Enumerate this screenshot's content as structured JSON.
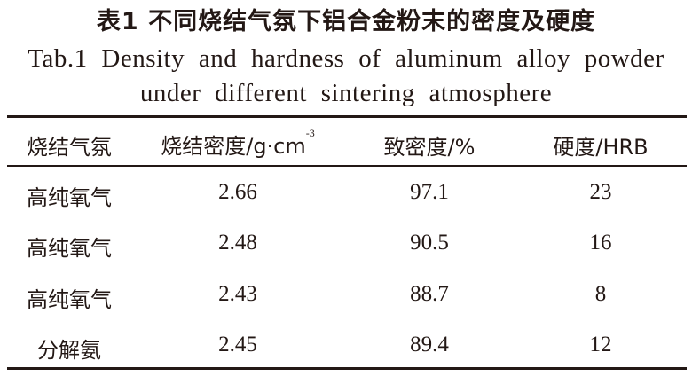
{
  "title": {
    "cn": "表1 不同烧结气氛下铝合金粉末的密度及硬度",
    "en_line1": "Tab.1 Density and hardness of aluminum alloy powder",
    "en_line2": "under different sintering atmosphere"
  },
  "table": {
    "headers": {
      "atmosphere": "烧结气氛",
      "density_label": "烧结密度/g·cm",
      "density_sup": "-3",
      "relative_density": "致密度/%",
      "hardness": "硬度/HRB"
    },
    "rows": [
      {
        "atmosphere": "高纯氧气",
        "density": "2.66",
        "relative_density": "97.1",
        "hardness": "23"
      },
      {
        "atmosphere": "高纯氧气",
        "density": "2.48",
        "relative_density": "90.5",
        "hardness": "16"
      },
      {
        "atmosphere": "高纯氧气",
        "density": "2.43",
        "relative_density": "88.7",
        "hardness": "8"
      },
      {
        "atmosphere": "分解氨",
        "density": "2.45",
        "relative_density": "89.4",
        "hardness": "12"
      }
    ]
  }
}
